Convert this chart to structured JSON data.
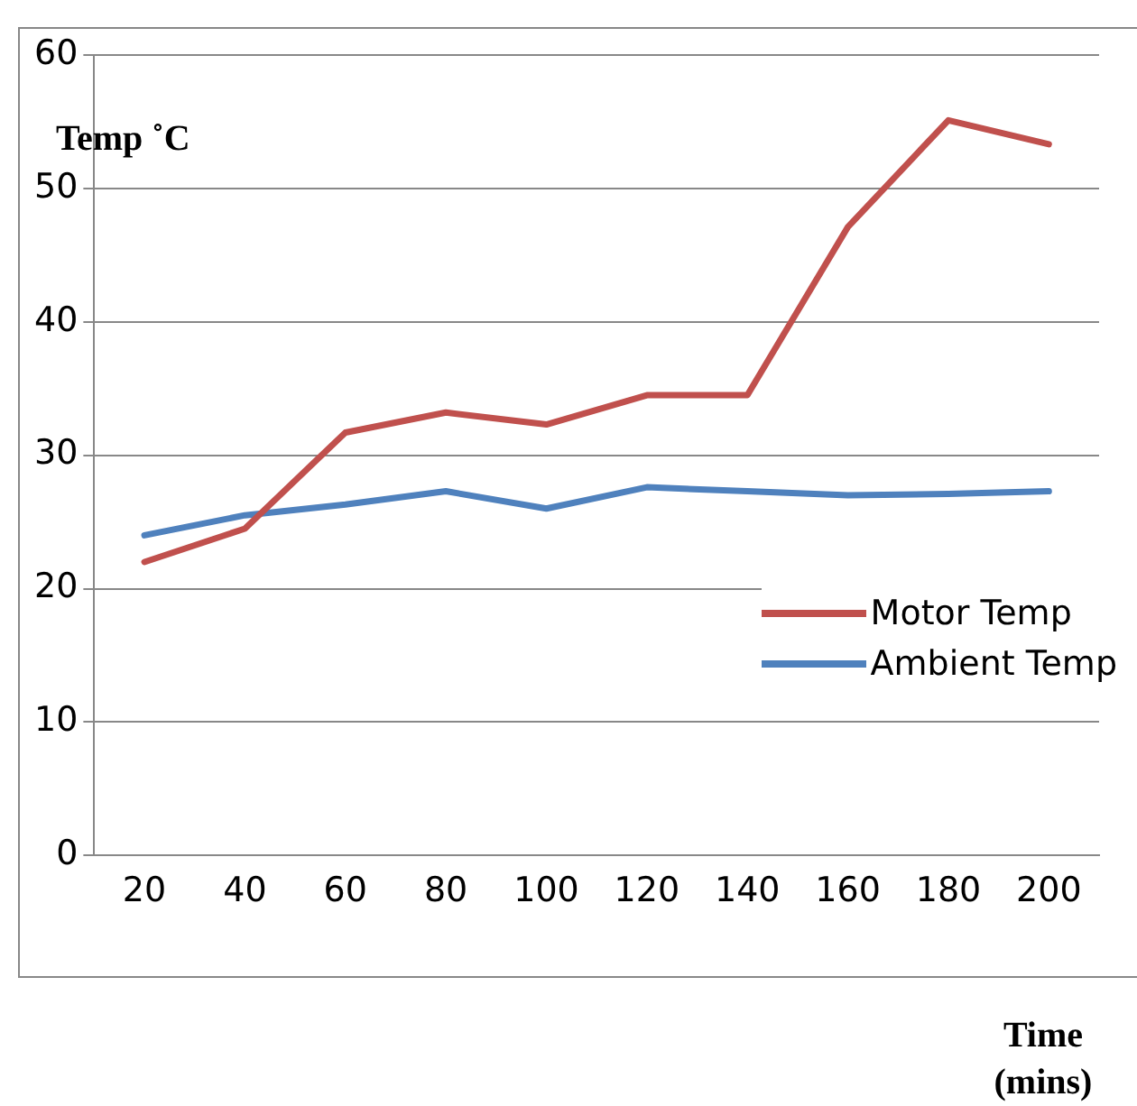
{
  "chart_data": {
    "type": "line",
    "ylabel": "Temp ˚C",
    "xlabel": "Time (mins)",
    "categories": [
      "20",
      "40",
      "60",
      "80",
      "100",
      "120",
      "140",
      "160",
      "180",
      "200"
    ],
    "series": [
      {
        "name": "Motor Temp",
        "color": "#c0504d",
        "values": [
          22.0,
          24.5,
          31.7,
          33.2,
          32.3,
          34.5,
          34.5,
          47.1,
          55.1,
          53.3
        ]
      },
      {
        "name": "Ambient Temp",
        "color": "#4f81bd",
        "values": [
          24.0,
          25.5,
          26.3,
          27.3,
          26.0,
          27.6,
          27.3,
          27.0,
          27.1,
          27.3
        ]
      }
    ],
    "ylim": [
      0,
      60
    ],
    "yticks": [
      0,
      10,
      20,
      30,
      40,
      50,
      60
    ],
    "grid": "y",
    "legend": "right",
    "marker": "none",
    "line_style": "solid"
  }
}
